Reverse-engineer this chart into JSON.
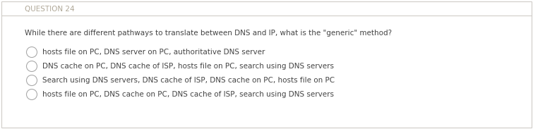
{
  "title": "QUESTION 24",
  "title_color": "#b0a898",
  "question": "While there are different pathways to translate between DNS and IP, what is the \"generic\" method?",
  "options": [
    "hosts file on PC, DNS server on PC, authoritative DNS server",
    "DNS cache on PC, DNS cache of ISP, hosts file on PC, search using DNS servers",
    "Search using DNS servers, DNS cache of ISP, DNS cache on PC, hosts file on PC",
    "hosts file on PC, DNS cache on PC, DNS cache of ISP, search using DNS servers"
  ],
  "bg_color": "#ffffff",
  "border_color": "#d0ccc8",
  "top_line_color": "#d0ccc8",
  "title_fontsize": 7.5,
  "question_fontsize": 7.5,
  "option_fontsize": 7.5,
  "text_color": "#444444",
  "circle_color": "#aaaaaa",
  "fig_width": 7.55,
  "fig_height": 1.83,
  "dpi": 100
}
